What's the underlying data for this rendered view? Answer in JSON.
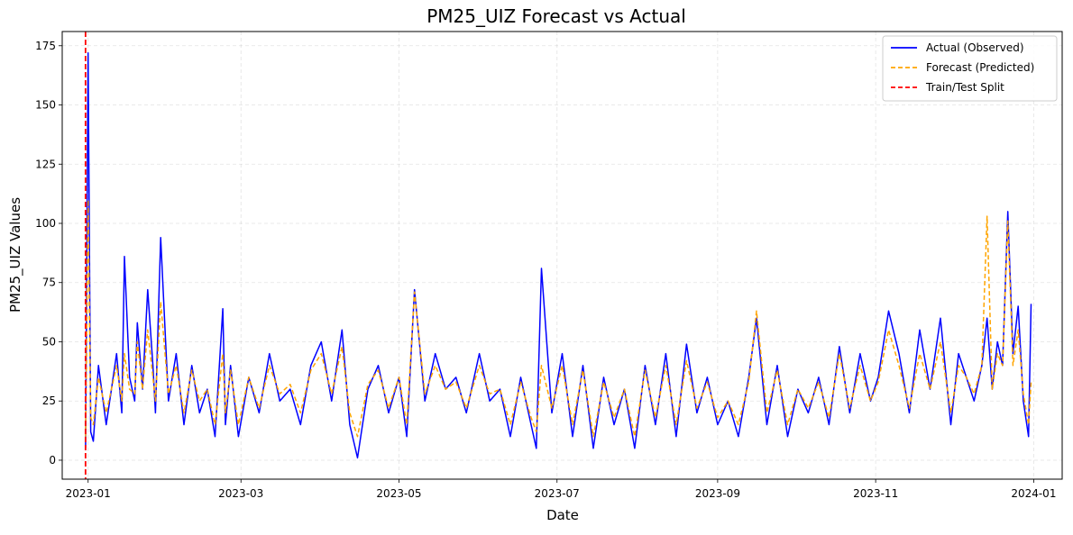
{
  "chart_data": {
    "type": "line",
    "title": "PM25_UIZ Forecast vs Actual",
    "xlabel": "Date",
    "ylabel": "PM25_UIZ Values",
    "x_range": [
      "2022-12-22",
      "2024-01-12"
    ],
    "ylim": [
      -8,
      181
    ],
    "x_ticks": [
      {
        "date": "2023-01-01",
        "label": "2023-01"
      },
      {
        "date": "2023-03-01",
        "label": "2023-03"
      },
      {
        "date": "2023-05-01",
        "label": "2023-05"
      },
      {
        "date": "2023-07-01",
        "label": "2023-07"
      },
      {
        "date": "2023-09-01",
        "label": "2023-09"
      },
      {
        "date": "2023-11-01",
        "label": "2023-11"
      },
      {
        "date": "2024-01-01",
        "label": "2024-01"
      }
    ],
    "y_ticks": [
      0,
      25,
      50,
      75,
      100,
      125,
      150,
      175
    ],
    "grid": true,
    "grid_style": "dashed",
    "legend_position": "top-right",
    "split_date": "2022-12-31",
    "series": [
      {
        "name": "Actual (Observed)",
        "color": "#0000ff",
        "style": "solid",
        "x": [
          "2022-12-31",
          "2023-01-01",
          "2023-01-02",
          "2023-01-03",
          "2023-01-05",
          "2023-01-08",
          "2023-01-10",
          "2023-01-12",
          "2023-01-14",
          "2023-01-15",
          "2023-01-17",
          "2023-01-19",
          "2023-01-20",
          "2023-01-22",
          "2023-01-24",
          "2023-01-26",
          "2023-01-27",
          "2023-01-29",
          "2023-02-01",
          "2023-02-04",
          "2023-02-07",
          "2023-02-10",
          "2023-02-13",
          "2023-02-16",
          "2023-02-19",
          "2023-02-22",
          "2023-02-23",
          "2023-02-25",
          "2023-02-28",
          "2023-03-04",
          "2023-03-08",
          "2023-03-12",
          "2023-03-16",
          "2023-03-20",
          "2023-03-24",
          "2023-03-28",
          "2023-04-01",
          "2023-04-05",
          "2023-04-09",
          "2023-04-12",
          "2023-04-15",
          "2023-04-19",
          "2023-04-23",
          "2023-04-27",
          "2023-05-01",
          "2023-05-04",
          "2023-05-07",
          "2023-05-11",
          "2023-05-15",
          "2023-05-19",
          "2023-05-23",
          "2023-05-27",
          "2023-06-01",
          "2023-06-05",
          "2023-06-09",
          "2023-06-13",
          "2023-06-17",
          "2023-06-21",
          "2023-06-23",
          "2023-06-25",
          "2023-06-29",
          "2023-07-03",
          "2023-07-07",
          "2023-07-11",
          "2023-07-15",
          "2023-07-19",
          "2023-07-23",
          "2023-07-27",
          "2023-07-31",
          "2023-08-04",
          "2023-08-08",
          "2023-08-12",
          "2023-08-16",
          "2023-08-20",
          "2023-08-24",
          "2023-08-28",
          "2023-09-01",
          "2023-09-05",
          "2023-09-09",
          "2023-09-13",
          "2023-09-16",
          "2023-09-20",
          "2023-09-24",
          "2023-09-28",
          "2023-10-02",
          "2023-10-06",
          "2023-10-10",
          "2023-10-14",
          "2023-10-18",
          "2023-10-22",
          "2023-10-26",
          "2023-10-30",
          "2023-11-02",
          "2023-11-06",
          "2023-11-10",
          "2023-11-14",
          "2023-11-18",
          "2023-11-22",
          "2023-11-26",
          "2023-11-30",
          "2023-12-03",
          "2023-12-06",
          "2023-12-09",
          "2023-12-12",
          "2023-12-14",
          "2023-12-16",
          "2023-12-18",
          "2023-12-20",
          "2023-12-22",
          "2023-12-24",
          "2023-12-26",
          "2023-12-28",
          "2023-12-30",
          "2023-12-31"
        ],
        "y": [
          5,
          172,
          12,
          8,
          40,
          15,
          30,
          45,
          20,
          86,
          35,
          25,
          58,
          30,
          72,
          40,
          20,
          94,
          25,
          45,
          15,
          40,
          20,
          30,
          10,
          64,
          15,
          40,
          10,
          35,
          20,
          45,
          25,
          30,
          15,
          40,
          50,
          25,
          55,
          15,
          1,
          30,
          40,
          20,
          35,
          10,
          72,
          25,
          45,
          30,
          35,
          20,
          45,
          25,
          30,
          10,
          35,
          15,
          5,
          81,
          20,
          45,
          10,
          40,
          5,
          35,
          15,
          30,
          5,
          40,
          15,
          45,
          10,
          49,
          20,
          35,
          15,
          25,
          10,
          35,
          60,
          15,
          40,
          10,
          30,
          20,
          35,
          15,
          48,
          20,
          45,
          25,
          35,
          63,
          45,
          20,
          55,
          30,
          60,
          15,
          45,
          35,
          25,
          40,
          60,
          30,
          50,
          40,
          105,
          45,
          65,
          25,
          10,
          66
        ]
      },
      {
        "name": "Forecast (Predicted)",
        "color": "#ffa500",
        "style": "dashed",
        "x": [
          "2022-12-31",
          "2023-01-01",
          "2023-01-02",
          "2023-01-03",
          "2023-01-05",
          "2023-01-08",
          "2023-01-10",
          "2023-01-12",
          "2023-01-14",
          "2023-01-15",
          "2023-01-17",
          "2023-01-19",
          "2023-01-20",
          "2023-01-22",
          "2023-01-24",
          "2023-01-26",
          "2023-01-27",
          "2023-01-29",
          "2023-02-01",
          "2023-02-04",
          "2023-02-07",
          "2023-02-10",
          "2023-02-13",
          "2023-02-16",
          "2023-02-19",
          "2023-02-22",
          "2023-02-23",
          "2023-02-25",
          "2023-02-28",
          "2023-03-04",
          "2023-03-08",
          "2023-03-12",
          "2023-03-16",
          "2023-03-20",
          "2023-03-24",
          "2023-03-28",
          "2023-04-01",
          "2023-04-05",
          "2023-04-09",
          "2023-04-12",
          "2023-04-15",
          "2023-04-19",
          "2023-04-23",
          "2023-04-27",
          "2023-05-01",
          "2023-05-04",
          "2023-05-07",
          "2023-05-11",
          "2023-05-15",
          "2023-05-19",
          "2023-05-23",
          "2023-05-27",
          "2023-06-01",
          "2023-06-05",
          "2023-06-09",
          "2023-06-13",
          "2023-06-17",
          "2023-06-21",
          "2023-06-23",
          "2023-06-25",
          "2023-06-29",
          "2023-07-03",
          "2023-07-07",
          "2023-07-11",
          "2023-07-15",
          "2023-07-19",
          "2023-07-23",
          "2023-07-27",
          "2023-07-31",
          "2023-08-04",
          "2023-08-08",
          "2023-08-12",
          "2023-08-16",
          "2023-08-20",
          "2023-08-24",
          "2023-08-28",
          "2023-09-01",
          "2023-09-05",
          "2023-09-09",
          "2023-09-13",
          "2023-09-16",
          "2023-09-20",
          "2023-09-24",
          "2023-09-28",
          "2023-10-02",
          "2023-10-06",
          "2023-10-10",
          "2023-10-14",
          "2023-10-18",
          "2023-10-22",
          "2023-10-26",
          "2023-10-30",
          "2023-11-02",
          "2023-11-06",
          "2023-11-10",
          "2023-11-14",
          "2023-11-18",
          "2023-11-22",
          "2023-11-26",
          "2023-11-30",
          "2023-12-03",
          "2023-12-06",
          "2023-12-09",
          "2023-12-12",
          "2023-12-14",
          "2023-12-16",
          "2023-12-18",
          "2023-12-20",
          "2023-12-22",
          "2023-12-24",
          "2023-12-26",
          "2023-12-28",
          "2023-12-30",
          "2023-12-31"
        ],
        "y": [
          10,
          110,
          18,
          15,
          35,
          20,
          30,
          40,
          25,
          45,
          30,
          28,
          50,
          30,
          55,
          35,
          25,
          67,
          28,
          40,
          20,
          38,
          25,
          30,
          15,
          45,
          20,
          38,
          15,
          35,
          22,
          40,
          28,
          32,
          20,
          38,
          45,
          28,
          48,
          20,
          10,
          32,
          38,
          22,
          35,
          15,
          71,
          28,
          40,
          30,
          33,
          22,
          40,
          28,
          30,
          15,
          33,
          18,
          12,
          40,
          22,
          40,
          15,
          38,
          10,
          33,
          18,
          30,
          10,
          38,
          18,
          40,
          15,
          42,
          22,
          33,
          18,
          25,
          15,
          33,
          63,
          20,
          38,
          15,
          30,
          22,
          33,
          18,
          45,
          22,
          40,
          25,
          33,
          55,
          40,
          22,
          45,
          30,
          50,
          20,
          40,
          35,
          28,
          40,
          103,
          30,
          45,
          40,
          101,
          40,
          55,
          28,
          15,
          33
        ]
      }
    ]
  }
}
